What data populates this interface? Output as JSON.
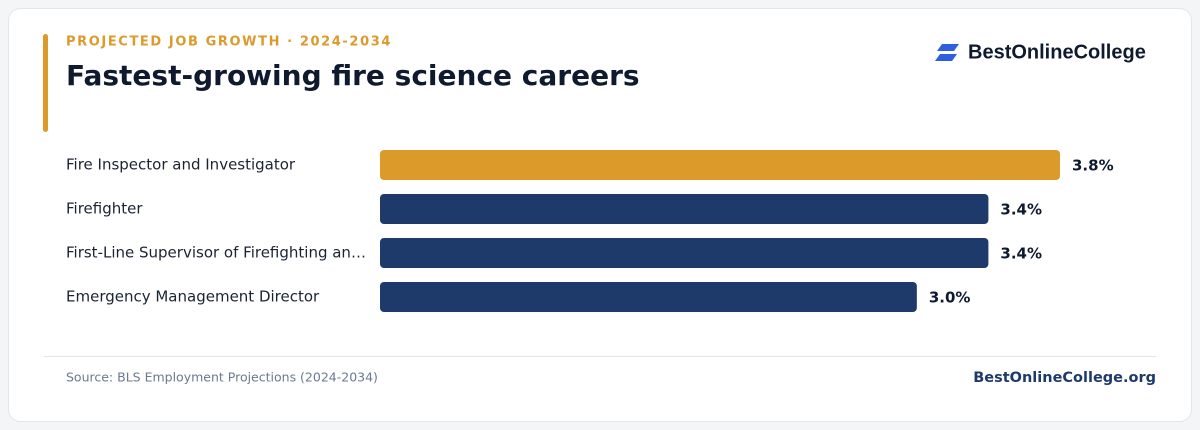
{
  "chart_data": {
    "type": "bar",
    "orientation": "horizontal",
    "eyebrow": "PROJECTED JOB GROWTH · 2024-2034",
    "title": "Fastest-growing fire science careers",
    "brand": "BestOnlineCollege",
    "categories": [
      "Fire Inspector and Investigator",
      "Firefighter",
      "First-Line Supervisor of Firefighting an…",
      "Emergency Management Director"
    ],
    "values": [
      3.8,
      3.4,
      3.4,
      3.0
    ],
    "value_labels": [
      "3.8%",
      "3.4%",
      "3.4%",
      "3.0%"
    ],
    "colors": [
      "#db9a2a",
      "#1e3a6b",
      "#1e3a6b",
      "#1e3a6b"
    ],
    "source": "Source: BLS Employment Projections (2024-2034)",
    "footer_link": "BestOnlineCollege.org"
  }
}
